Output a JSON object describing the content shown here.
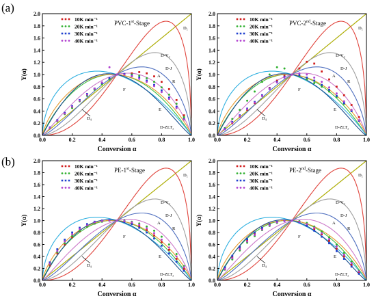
{
  "panel_letters": [
    "(a)",
    "(b)"
  ],
  "colors": {
    "D1": "#7f7f7f",
    "F": "#b7b700",
    "DV2": "#e0443c",
    "R": "#9e9e9e",
    "DJ": "#4f6fbf",
    "A": "#cc79c9",
    "E": "#3fbf3f",
    "D4": "#2fb0e0",
    "DZLT2": "#1b4f8f",
    "D3": "#e69a2e",
    "s10": "#d11f1f",
    "s20": "#2fb02f",
    "s30": "#1f3fcf",
    "s40": "#b03fcf"
  },
  "chart_data": [
    {
      "type": "line",
      "title": "PVC-1st-Stage",
      "title_main": "PVC-1",
      "title_sup": "st",
      "title_tail": "-Stage",
      "xlabel": "Conversion α",
      "ylabel": "Y(α)",
      "xlim": [
        0,
        1
      ],
      "ylim": [
        0,
        2
      ],
      "xticks": [
        "0.0",
        "0.2",
        "0.4",
        "0.6",
        "0.8",
        "1.0"
      ],
      "yticks": [
        "0.0",
        "0.2",
        "0.4",
        "0.6",
        "0.8",
        "1.0",
        "1.2",
        "1.4",
        "1.6",
        "1.8",
        "2.0"
      ],
      "legend": [
        "10K min⁻¹",
        "20K min⁻¹",
        "30K min⁻¹",
        "40K min⁻¹"
      ],
      "model_labels": [
        "D₁",
        "D-V₂",
        "R",
        "D-J",
        "A",
        "F",
        "E",
        "D₄",
        "D-ZLT₂"
      ],
      "series": [
        {
          "name": "10K min⁻¹",
          "x": [
            0.05,
            0.1,
            0.15,
            0.2,
            0.25,
            0.3,
            0.35,
            0.4,
            0.45,
            0.5,
            0.55,
            0.6,
            0.65,
            0.7,
            0.75,
            0.8,
            0.85,
            0.9,
            0.95
          ],
          "y": [
            0.12,
            0.24,
            0.36,
            0.46,
            0.57,
            0.66,
            0.76,
            0.85,
            0.93,
            1.0,
            1.0,
            1.02,
            1.04,
            1.02,
            0.97,
            0.88,
            0.76,
            0.58,
            0.33
          ]
        },
        {
          "name": "20K min⁻¹",
          "x": [
            0.05,
            0.1,
            0.15,
            0.2,
            0.25,
            0.3,
            0.35,
            0.4,
            0.45,
            0.5,
            0.55,
            0.6,
            0.65,
            0.7,
            0.75,
            0.8,
            0.85,
            0.9,
            0.95
          ],
          "y": [
            0.12,
            0.23,
            0.35,
            0.45,
            0.56,
            0.65,
            0.75,
            0.84,
            0.92,
            1.0,
            1.01,
            1.0,
            0.98,
            0.94,
            0.88,
            0.79,
            0.67,
            0.52,
            0.3
          ]
        },
        {
          "name": "30K min⁻¹",
          "x": [
            0.05,
            0.1,
            0.15,
            0.2,
            0.25,
            0.3,
            0.35,
            0.4,
            0.45,
            0.5,
            0.55,
            0.6,
            0.65,
            0.7,
            0.75,
            0.8,
            0.85,
            0.9,
            0.95
          ],
          "y": [
            0.13,
            0.25,
            0.37,
            0.48,
            0.58,
            0.68,
            0.77,
            0.86,
            0.94,
            1.0,
            1.01,
            0.98,
            0.95,
            0.9,
            0.83,
            0.74,
            0.62,
            0.47,
            0.27
          ]
        },
        {
          "name": "40K min⁻¹",
          "x": [
            0.05,
            0.1,
            0.15,
            0.2,
            0.25,
            0.3,
            0.35,
            0.4,
            0.45,
            0.5,
            0.55,
            0.6,
            0.65,
            0.7,
            0.75,
            0.8,
            0.85,
            0.9,
            0.95
          ],
          "y": [
            0.12,
            0.24,
            0.36,
            0.47,
            0.57,
            0.67,
            0.77,
            0.87,
            1.12,
            1.0,
            1.0,
            0.97,
            0.93,
            0.88,
            0.81,
            0.71,
            0.6,
            0.45,
            0.26
          ]
        }
      ]
    },
    {
      "type": "line",
      "title": "PVC-2nd-Stage",
      "title_main": "PVC-2",
      "title_sup": "nd",
      "title_tail": "-Stage",
      "xlabel": "Conversion α",
      "ylabel": "Y(α)",
      "xlim": [
        0,
        1
      ],
      "ylim": [
        0,
        2
      ],
      "xticks": [
        "0.0",
        "0.2",
        "0.4",
        "0.6",
        "0.8",
        "1.0"
      ],
      "yticks": [
        "0.0",
        "0.2",
        "0.4",
        "0.6",
        "0.8",
        "1.0",
        "1.2",
        "1.4",
        "1.6",
        "1.8",
        "2.0"
      ],
      "legend": [
        "10K min⁻¹",
        "20K min⁻¹",
        "30K min⁻¹",
        "40K min⁻¹"
      ],
      "model_labels": [
        "D₁",
        "D-V₂",
        "R",
        "D-J",
        "A",
        "F",
        "E",
        "D₄",
        "D-ZLT₂"
      ],
      "series": [
        {
          "name": "10K min⁻¹",
          "x": [
            0.05,
            0.1,
            0.15,
            0.2,
            0.25,
            0.3,
            0.35,
            0.4,
            0.45,
            0.5,
            0.55,
            0.6,
            0.65,
            0.7,
            0.75,
            0.8,
            0.85,
            0.9,
            0.95
          ],
          "y": [
            0.1,
            0.2,
            0.31,
            0.42,
            0.53,
            0.65,
            0.78,
            0.9,
            0.98,
            1.0,
            1.1,
            1.21,
            1.18,
            1.05,
            0.92,
            0.8,
            0.66,
            0.5,
            0.3
          ]
        },
        {
          "name": "20K min⁻¹",
          "x": [
            0.05,
            0.1,
            0.15,
            0.2,
            0.25,
            0.3,
            0.35,
            0.4,
            0.45,
            0.5,
            0.55,
            0.6,
            0.65,
            0.7,
            0.75,
            0.8,
            0.85,
            0.9,
            0.95
          ],
          "y": [
            0.12,
            0.27,
            0.42,
            0.57,
            0.72,
            0.88,
            1.0,
            1.12,
            1.1,
            1.0,
            0.97,
            0.92,
            0.86,
            0.8,
            0.72,
            0.63,
            0.52,
            0.4,
            0.24
          ]
        },
        {
          "name": "30K min⁻¹",
          "x": [
            0.05,
            0.1,
            0.15,
            0.2,
            0.25,
            0.3,
            0.35,
            0.4,
            0.45,
            0.5,
            0.55,
            0.6,
            0.65,
            0.7,
            0.75,
            0.8,
            0.85,
            0.9,
            0.95
          ],
          "y": [
            0.11,
            0.22,
            0.33,
            0.44,
            0.55,
            0.66,
            0.77,
            0.88,
            0.96,
            1.0,
            0.99,
            0.95,
            0.9,
            0.83,
            0.75,
            0.65,
            0.53,
            0.4,
            0.24
          ]
        },
        {
          "name": "40K min⁻¹",
          "x": [
            0.05,
            0.1,
            0.15,
            0.2,
            0.25,
            0.3,
            0.35,
            0.4,
            0.45,
            0.5,
            0.55,
            0.6,
            0.65,
            0.7,
            0.75,
            0.8,
            0.85,
            0.9,
            0.95
          ],
          "y": [
            0.1,
            0.21,
            0.32,
            0.43,
            0.54,
            0.65,
            0.76,
            0.87,
            0.95,
            1.0,
            1.02,
            1.0,
            0.95,
            0.88,
            0.79,
            0.69,
            0.56,
            0.42,
            0.25
          ]
        }
      ]
    },
    {
      "type": "line",
      "title": "PE-1st-Stage",
      "title_main": "PE-1",
      "title_sup": "st",
      "title_tail": "-Stage",
      "xlabel": "Conversion α",
      "ylabel": "Y(α)",
      "xlim": [
        0,
        1
      ],
      "ylim": [
        0,
        2
      ],
      "xticks": [
        "0.0",
        "0.2",
        "0.4",
        "0.6",
        "0.8",
        "1.0"
      ],
      "yticks": [
        "0.0",
        "0.2",
        "0.4",
        "0.6",
        "0.8",
        "1.0",
        "1.2",
        "1.4",
        "1.6",
        "1.8",
        "2.0"
      ],
      "legend": [
        "10K min⁻¹",
        "20K min⁻¹",
        "30K min⁻¹",
        "40K min⁻¹"
      ],
      "model_labels": [
        "D₁",
        "D-V₂",
        "R",
        "D-J",
        "A",
        "F",
        "E",
        "D₄",
        "D-ZLT₂"
      ],
      "series": [
        {
          "name": "10K min⁻¹",
          "x": [
            0.05,
            0.1,
            0.15,
            0.2,
            0.25,
            0.3,
            0.35,
            0.4,
            0.45,
            0.5,
            0.55,
            0.6,
            0.65,
            0.7,
            0.75,
            0.8,
            0.85,
            0.9,
            0.95
          ],
          "y": [
            0.25,
            0.45,
            0.6,
            0.72,
            0.82,
            0.9,
            0.95,
            0.99,
            1.0,
            1.0,
            0.99,
            0.96,
            0.91,
            0.84,
            0.75,
            0.64,
            0.51,
            0.36,
            0.19
          ]
        },
        {
          "name": "20K min⁻¹",
          "x": [
            0.05,
            0.1,
            0.15,
            0.2,
            0.25,
            0.3,
            0.35,
            0.4,
            0.45,
            0.5,
            0.55,
            0.6,
            0.65,
            0.7,
            0.75,
            0.8,
            0.85,
            0.9,
            0.95
          ],
          "y": [
            0.27,
            0.47,
            0.62,
            0.74,
            0.83,
            0.9,
            0.95,
            0.98,
            1.0,
            1.0,
            1.0,
            0.98,
            0.95,
            0.9,
            0.83,
            0.73,
            0.6,
            0.44,
            0.24
          ]
        },
        {
          "name": "30K min⁻¹",
          "x": [
            0.05,
            0.1,
            0.15,
            0.2,
            0.25,
            0.3,
            0.35,
            0.4,
            0.45,
            0.5,
            0.55,
            0.6,
            0.65,
            0.7,
            0.75,
            0.8,
            0.85,
            0.9,
            0.95
          ],
          "y": [
            0.3,
            0.52,
            0.68,
            0.8,
            0.88,
            0.94,
            0.98,
            1.0,
            1.01,
            1.0,
            0.98,
            0.94,
            0.88,
            0.8,
            0.7,
            0.58,
            0.45,
            0.31,
            0.16
          ]
        },
        {
          "name": "40K min⁻¹",
          "x": [
            0.05,
            0.1,
            0.15,
            0.2,
            0.25,
            0.3,
            0.35,
            0.4,
            0.45,
            0.5,
            0.55,
            0.6,
            0.65,
            0.7,
            0.75,
            0.8,
            0.85,
            0.9,
            0.95
          ],
          "y": [
            0.28,
            0.49,
            0.65,
            0.77,
            0.86,
            0.92,
            0.97,
            0.99,
            1.0,
            1.0,
            0.99,
            0.97,
            0.93,
            0.87,
            0.79,
            0.68,
            0.55,
            0.4,
            0.22
          ]
        }
      ]
    },
    {
      "type": "line",
      "title": "PE-2nd-Stage",
      "title_main": "PE-2",
      "title_sup": "nd",
      "title_tail": "-Stage",
      "xlabel": "Conversion α",
      "ylabel": "Y(α)",
      "xlim": [
        0,
        1
      ],
      "ylim": [
        0,
        2
      ],
      "xticks": [
        "0.0",
        "0.2",
        "0.4",
        "0.6",
        "0.8",
        "1.0"
      ],
      "yticks": [
        "0.0",
        "0.2",
        "0.4",
        "0.6",
        "0.8",
        "1.0",
        "1.2",
        "1.4",
        "1.6",
        "1.8",
        "2.0"
      ],
      "legend": [
        "10K min⁻¹",
        "20K min⁻¹",
        "30K min⁻¹",
        "40K min⁻¹"
      ],
      "model_labels": [
        "D₁",
        "D-V₂",
        "R",
        "D-J",
        "A",
        "F",
        "E",
        "D₄",
        "D-ZLT₂"
      ],
      "series": [
        {
          "name": "10K min⁻¹",
          "x": [
            0.05,
            0.1,
            0.15,
            0.2,
            0.25,
            0.3,
            0.35,
            0.4,
            0.45,
            0.5,
            0.55,
            0.6,
            0.65,
            0.7,
            0.75,
            0.8,
            0.85,
            0.9,
            0.95
          ],
          "y": [
            0.2,
            0.38,
            0.53,
            0.66,
            0.77,
            0.86,
            0.93,
            0.97,
            1.0,
            1.0,
            0.98,
            0.93,
            0.86,
            0.77,
            0.66,
            0.53,
            0.4,
            0.26,
            0.13
          ]
        },
        {
          "name": "20K min⁻¹",
          "x": [
            0.05,
            0.1,
            0.15,
            0.2,
            0.25,
            0.3,
            0.35,
            0.4,
            0.45,
            0.5,
            0.55,
            0.6,
            0.65,
            0.7,
            0.75,
            0.8,
            0.85,
            0.9,
            0.95
          ],
          "y": [
            0.18,
            0.35,
            0.5,
            0.63,
            0.74,
            0.84,
            0.91,
            0.96,
            0.99,
            1.0,
            0.99,
            0.96,
            0.9,
            0.82,
            0.72,
            0.6,
            0.46,
            0.31,
            0.16
          ]
        },
        {
          "name": "30K min⁻¹",
          "x": [
            0.05,
            0.1,
            0.15,
            0.2,
            0.25,
            0.3,
            0.35,
            0.4,
            0.45,
            0.5,
            0.55,
            0.6,
            0.65,
            0.7,
            0.75,
            0.8,
            0.85,
            0.9,
            0.95
          ],
          "y": [
            0.22,
            0.41,
            0.56,
            0.69,
            0.8,
            0.88,
            0.94,
            0.98,
            1.0,
            1.0,
            0.97,
            0.91,
            0.83,
            0.73,
            0.62,
            0.49,
            0.36,
            0.23,
            0.11
          ]
        },
        {
          "name": "40K min⁻¹",
          "x": [
            0.05,
            0.1,
            0.15,
            0.2,
            0.25,
            0.3,
            0.35,
            0.4,
            0.45,
            0.5,
            0.55,
            0.6,
            0.65,
            0.7,
            0.75,
            0.8,
            0.85,
            0.9,
            0.95
          ],
          "y": [
            0.19,
            0.37,
            0.52,
            0.65,
            0.76,
            0.85,
            0.92,
            0.97,
            0.99,
            1.0,
            0.98,
            0.94,
            0.88,
            0.79,
            0.69,
            0.57,
            0.43,
            0.29,
            0.15
          ]
        }
      ]
    }
  ]
}
